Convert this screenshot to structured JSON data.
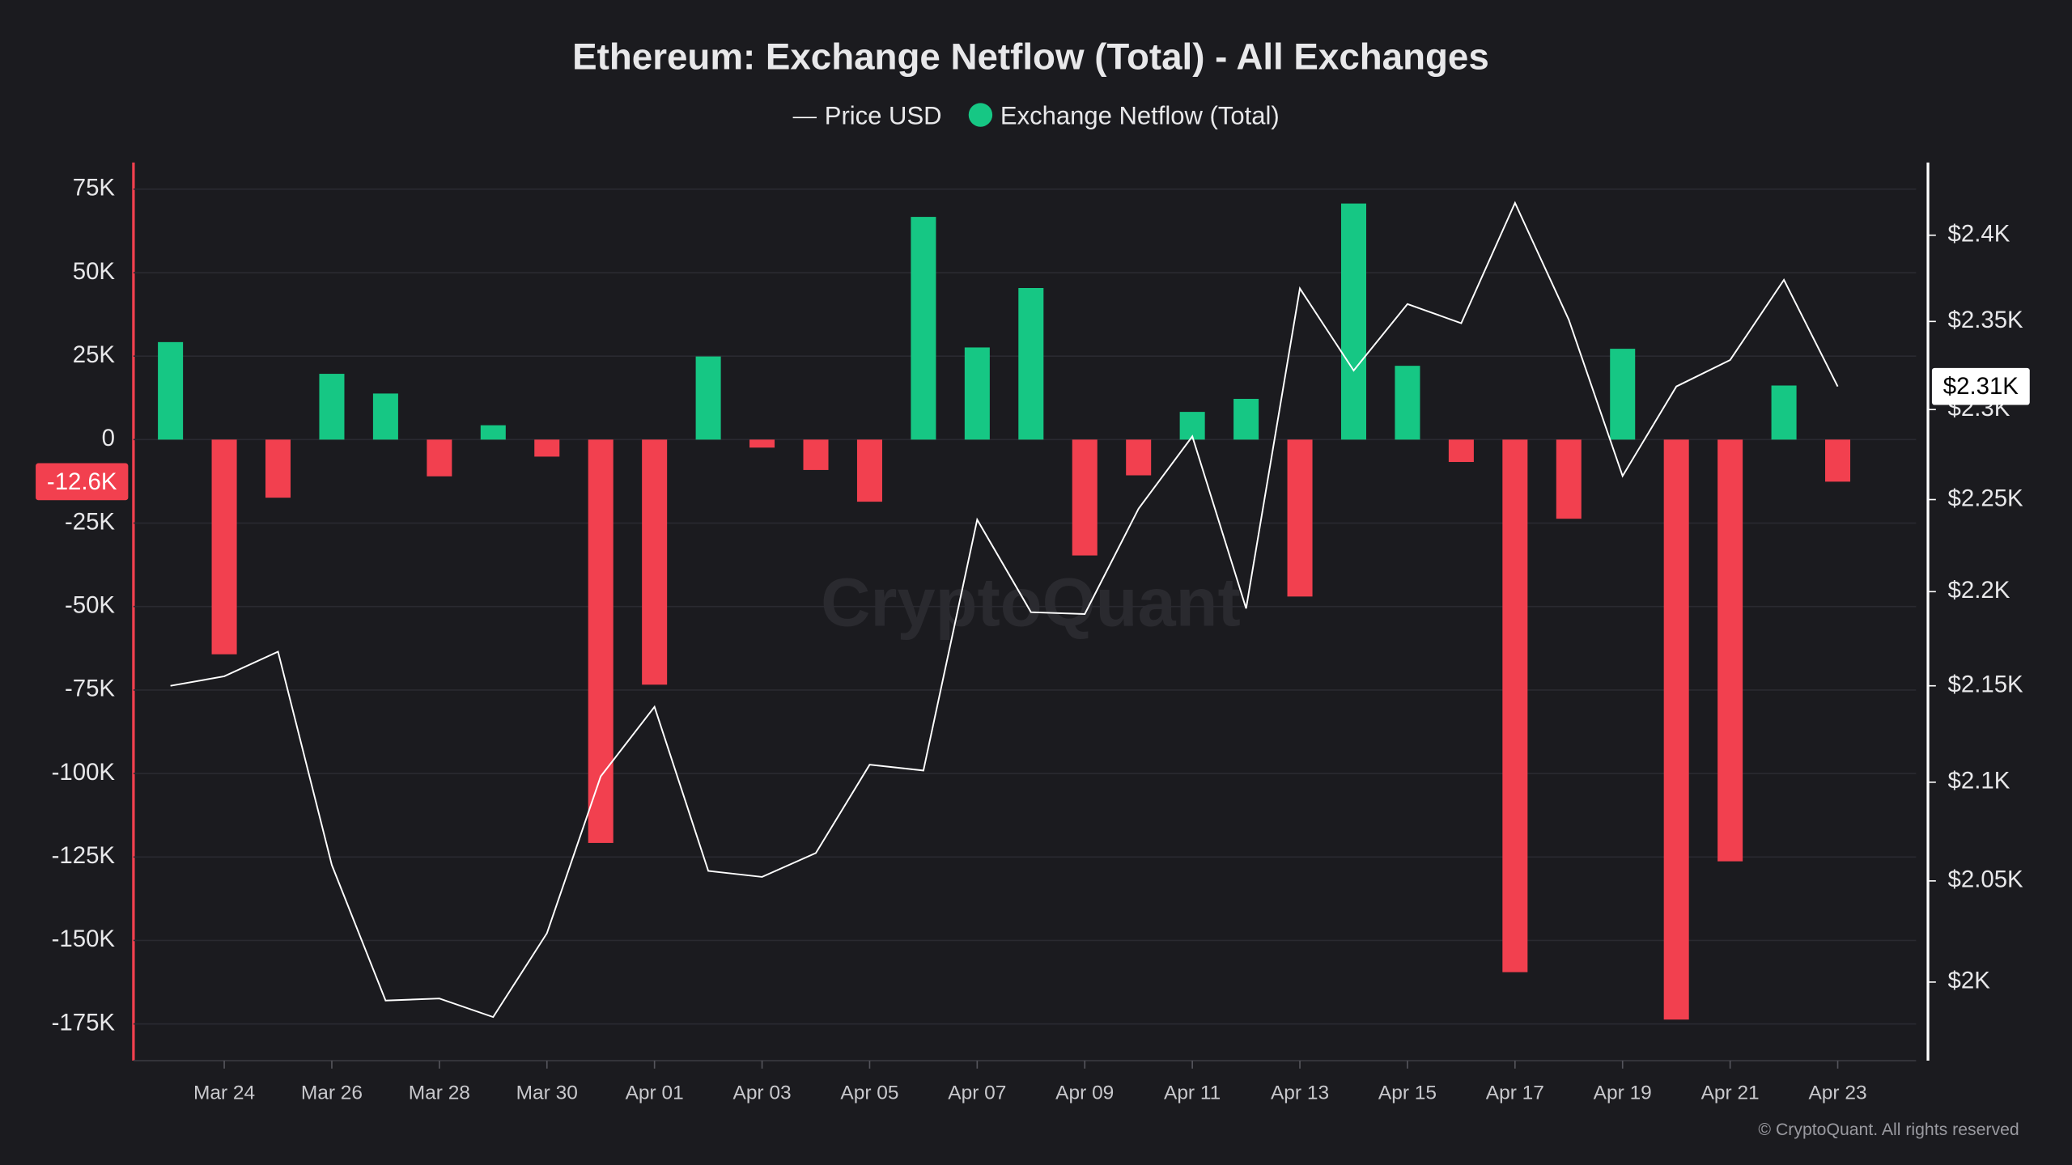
{
  "chart_data": {
    "type": "bar_line",
    "title": "Ethereum: Exchange Netflow (Total) - All Exchanges",
    "watermark": "CryptoQuant",
    "footer": "© CryptoQuant. All rights reserved",
    "categories": [
      null,
      "Mar 24",
      null,
      "Mar 26",
      null,
      "Mar 28",
      null,
      "Mar 30",
      null,
      "Apr 01",
      null,
      "Apr 03",
      null,
      "Apr 05",
      null,
      "Apr 07",
      null,
      "Apr 09",
      null,
      "Apr 11",
      null,
      "Apr 13",
      null,
      "Apr 15",
      null,
      "Apr 17",
      null,
      "Apr 19",
      null,
      "Apr 21",
      null,
      "Apr 23"
    ],
    "series": [
      {
        "name": "Price USD",
        "type": "line",
        "axis": "y2",
        "color": "#ffffff",
        "values": [
          2150,
          2155,
          2168,
          2058,
          1991,
          1992,
          1983,
          2024,
          2103,
          2139,
          2055,
          2052,
          2064,
          2109,
          2106,
          2239,
          2189,
          2188,
          2245,
          2285,
          2191,
          2369,
          2322,
          2360,
          2349,
          2419,
          2351,
          2263,
          2313,
          2328,
          2374,
          2313
        ],
        "value_labels": [
          null,
          null,
          null,
          null,
          null,
          null,
          null,
          null,
          null,
          null,
          null,
          null,
          null,
          null,
          null,
          null,
          null,
          null,
          null,
          null,
          null,
          null,
          null,
          null,
          null,
          null,
          null,
          null,
          null,
          null,
          null,
          "$2.31K"
        ]
      },
      {
        "name": "Exchange Netflow (Total)",
        "type": "bar",
        "color": "#16c784",
        "negative_color": "#f2404f",
        "values": [
          29200,
          -64300,
          -17400,
          19700,
          13800,
          -11000,
          4300,
          -5100,
          -120800,
          -73400,
          24900,
          -2400,
          -9100,
          -18600,
          66700,
          27600,
          45400,
          -34700,
          -10700,
          8300,
          12200,
          -47000,
          70700,
          22100,
          -6700,
          -159500,
          -23700,
          27200,
          -173700,
          -126300,
          16200,
          -12600
        ],
        "value_labels": [
          null,
          null,
          null,
          null,
          null,
          null,
          null,
          null,
          null,
          null,
          null,
          null,
          null,
          null,
          null,
          null,
          null,
          null,
          null,
          null,
          null,
          null,
          null,
          null,
          null,
          null,
          null,
          null,
          null,
          null,
          null,
          "-12.6K"
        ]
      }
    ],
    "ylim": [
      -186000,
      83000
    ],
    "yticks": [
      {
        "value": 75000,
        "label": "75K"
      },
      {
        "value": 50000,
        "label": "50K"
      },
      {
        "value": 25000,
        "label": "25K"
      },
      0,
      {
        "value": -25000,
        "label": "-25K"
      },
      {
        "value": -50000,
        "label": "-50K"
      },
      {
        "value": -75000,
        "label": "-75K"
      },
      {
        "value": -100000,
        "label": "-100K"
      },
      {
        "value": -125000,
        "label": "-125K"
      },
      {
        "value": -150000,
        "label": "-150K"
      },
      {
        "value": -175000,
        "label": "-175K"
      }
    ],
    "y2lim": [
      1962,
      2443
    ],
    "y2_scale": "log",
    "y2ticks": [
      {
        "value": 2400,
        "label": "$2.4K"
      },
      {
        "value": 2350,
        "label": "$2.35K"
      },
      {
        "value": 2300,
        "label": "$2.3K"
      },
      {
        "value": 2250,
        "label": "$2.25K"
      },
      {
        "value": 2200,
        "label": "$2.2K"
      },
      {
        "value": 2150,
        "label": "$2.15K"
      },
      {
        "value": 2100,
        "label": "$2.1K"
      },
      {
        "value": 2050,
        "label": "$2.05K"
      },
      {
        "value": 2000,
        "label": "$2K"
      }
    ],
    "grid": true
  }
}
